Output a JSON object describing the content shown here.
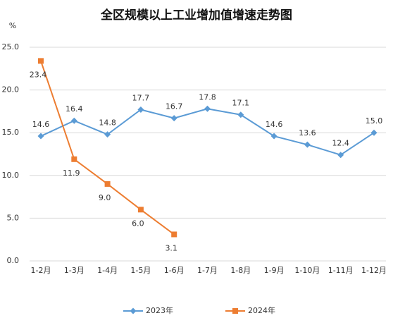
{
  "chart_data": {
    "type": "line",
    "title": "全区规模以上工业增加值增速走势图",
    "y_label": "%",
    "categories": [
      "1-2月",
      "1-3月",
      "1-4月",
      "1-5月",
      "1-6月",
      "1-7月",
      "1-8月",
      "1-9月",
      "1-10月",
      "1-11月",
      "1-12月"
    ],
    "series": [
      {
        "name": "2023年",
        "color": "#5b9bd5",
        "marker": "diamond",
        "values": [
          14.6,
          16.4,
          14.8,
          17.7,
          16.7,
          17.8,
          17.1,
          14.6,
          13.6,
          12.4,
          15.0
        ],
        "value_labels": [
          "14.6",
          "16.4",
          "14.8",
          "17.7",
          "16.7",
          "17.8",
          "17.1",
          "14.6",
          "13.6",
          "12.4",
          "15.0"
        ]
      },
      {
        "name": "2024年",
        "color": "#ed7d31",
        "marker": "square",
        "values": [
          23.4,
          11.9,
          9.0,
          6.0,
          3.1,
          null,
          null,
          null,
          null,
          null,
          null
        ],
        "value_labels": [
          "23.4",
          "11.9",
          "9.0",
          "6.0",
          "3.1",
          null,
          null,
          null,
          null,
          null,
          null
        ]
      }
    ],
    "ylim": [
      0,
      25
    ],
    "yticks": [
      {
        "value": 0,
        "label": "0.0"
      },
      {
        "value": 5,
        "label": "5.0"
      },
      {
        "value": 10,
        "label": "10.0"
      },
      {
        "value": 15,
        "label": "15.0"
      },
      {
        "value": 20,
        "label": "20.0"
      },
      {
        "value": 25,
        "label": "25.0"
      }
    ],
    "grid": true,
    "legend": "bottom"
  }
}
